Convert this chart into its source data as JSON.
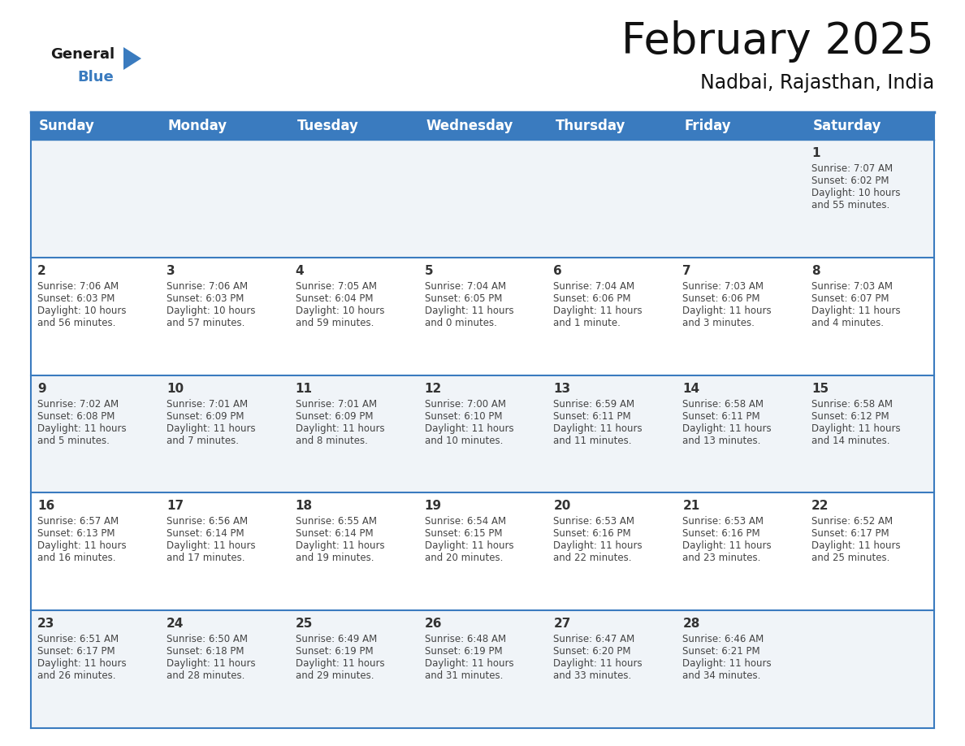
{
  "title": "February 2025",
  "subtitle": "Nadbai, Rajasthan, India",
  "header_color": "#3a7bbf",
  "header_text_color": "#ffffff",
  "background_color": "#ffffff",
  "cell_bg_row0": "#f0f4f8",
  "cell_bg_row1": "#ffffff",
  "cell_bg_row2": "#f0f4f8",
  "cell_bg_row3": "#ffffff",
  "cell_bg_row4": "#f0f4f8",
  "day_headers": [
    "Sunday",
    "Monday",
    "Tuesday",
    "Wednesday",
    "Thursday",
    "Friday",
    "Saturday"
  ],
  "title_fontsize": 38,
  "subtitle_fontsize": 17,
  "header_fontsize": 12,
  "day_num_fontsize": 11,
  "info_fontsize": 8.5,
  "logo_general_fontsize": 13,
  "logo_blue_fontsize": 13,
  "calendar_data": [
    [
      {
        "day": null,
        "sunrise": null,
        "sunset": null,
        "daylight": null
      },
      {
        "day": null,
        "sunrise": null,
        "sunset": null,
        "daylight": null
      },
      {
        "day": null,
        "sunrise": null,
        "sunset": null,
        "daylight": null
      },
      {
        "day": null,
        "sunrise": null,
        "sunset": null,
        "daylight": null
      },
      {
        "day": null,
        "sunrise": null,
        "sunset": null,
        "daylight": null
      },
      {
        "day": null,
        "sunrise": null,
        "sunset": null,
        "daylight": null
      },
      {
        "day": 1,
        "sunrise": "7:07 AM",
        "sunset": "6:02 PM",
        "daylight": "10 hours and 55 minutes."
      }
    ],
    [
      {
        "day": 2,
        "sunrise": "7:06 AM",
        "sunset": "6:03 PM",
        "daylight": "10 hours and 56 minutes."
      },
      {
        "day": 3,
        "sunrise": "7:06 AM",
        "sunset": "6:03 PM",
        "daylight": "10 hours and 57 minutes."
      },
      {
        "day": 4,
        "sunrise": "7:05 AM",
        "sunset": "6:04 PM",
        "daylight": "10 hours and 59 minutes."
      },
      {
        "day": 5,
        "sunrise": "7:04 AM",
        "sunset": "6:05 PM",
        "daylight": "11 hours and 0 minutes."
      },
      {
        "day": 6,
        "sunrise": "7:04 AM",
        "sunset": "6:06 PM",
        "daylight": "11 hours and 1 minute."
      },
      {
        "day": 7,
        "sunrise": "7:03 AM",
        "sunset": "6:06 PM",
        "daylight": "11 hours and 3 minutes."
      },
      {
        "day": 8,
        "sunrise": "7:03 AM",
        "sunset": "6:07 PM",
        "daylight": "11 hours and 4 minutes."
      }
    ],
    [
      {
        "day": 9,
        "sunrise": "7:02 AM",
        "sunset": "6:08 PM",
        "daylight": "11 hours and 5 minutes."
      },
      {
        "day": 10,
        "sunrise": "7:01 AM",
        "sunset": "6:09 PM",
        "daylight": "11 hours and 7 minutes."
      },
      {
        "day": 11,
        "sunrise": "7:01 AM",
        "sunset": "6:09 PM",
        "daylight": "11 hours and 8 minutes."
      },
      {
        "day": 12,
        "sunrise": "7:00 AM",
        "sunset": "6:10 PM",
        "daylight": "11 hours and 10 minutes."
      },
      {
        "day": 13,
        "sunrise": "6:59 AM",
        "sunset": "6:11 PM",
        "daylight": "11 hours and 11 minutes."
      },
      {
        "day": 14,
        "sunrise": "6:58 AM",
        "sunset": "6:11 PM",
        "daylight": "11 hours and 13 minutes."
      },
      {
        "day": 15,
        "sunrise": "6:58 AM",
        "sunset": "6:12 PM",
        "daylight": "11 hours and 14 minutes."
      }
    ],
    [
      {
        "day": 16,
        "sunrise": "6:57 AM",
        "sunset": "6:13 PM",
        "daylight": "11 hours and 16 minutes."
      },
      {
        "day": 17,
        "sunrise": "6:56 AM",
        "sunset": "6:14 PM",
        "daylight": "11 hours and 17 minutes."
      },
      {
        "day": 18,
        "sunrise": "6:55 AM",
        "sunset": "6:14 PM",
        "daylight": "11 hours and 19 minutes."
      },
      {
        "day": 19,
        "sunrise": "6:54 AM",
        "sunset": "6:15 PM",
        "daylight": "11 hours and 20 minutes."
      },
      {
        "day": 20,
        "sunrise": "6:53 AM",
        "sunset": "6:16 PM",
        "daylight": "11 hours and 22 minutes."
      },
      {
        "day": 21,
        "sunrise": "6:53 AM",
        "sunset": "6:16 PM",
        "daylight": "11 hours and 23 minutes."
      },
      {
        "day": 22,
        "sunrise": "6:52 AM",
        "sunset": "6:17 PM",
        "daylight": "11 hours and 25 minutes."
      }
    ],
    [
      {
        "day": 23,
        "sunrise": "6:51 AM",
        "sunset": "6:17 PM",
        "daylight": "11 hours and 26 minutes."
      },
      {
        "day": 24,
        "sunrise": "6:50 AM",
        "sunset": "6:18 PM",
        "daylight": "11 hours and 28 minutes."
      },
      {
        "day": 25,
        "sunrise": "6:49 AM",
        "sunset": "6:19 PM",
        "daylight": "11 hours and 29 minutes."
      },
      {
        "day": 26,
        "sunrise": "6:48 AM",
        "sunset": "6:19 PM",
        "daylight": "11 hours and 31 minutes."
      },
      {
        "day": 27,
        "sunrise": "6:47 AM",
        "sunset": "6:20 PM",
        "daylight": "11 hours and 33 minutes."
      },
      {
        "day": 28,
        "sunrise": "6:46 AM",
        "sunset": "6:21 PM",
        "daylight": "11 hours and 34 minutes."
      },
      {
        "day": null,
        "sunrise": null,
        "sunset": null,
        "daylight": null
      }
    ]
  ]
}
